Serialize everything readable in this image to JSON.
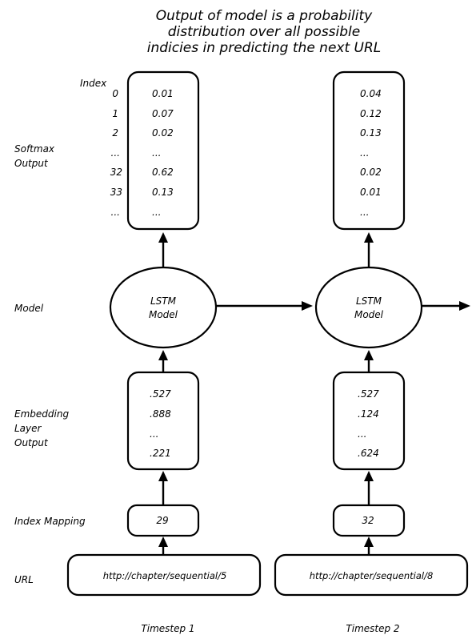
{
  "title": [
    "Output of model is a probability",
    "distribution over all possible",
    "indicies in predicting the next URL"
  ],
  "row_labels": {
    "index": "Index",
    "softmax": [
      "Softmax",
      "Output"
    ],
    "model": "Model",
    "embedding": [
      "Embedding",
      "Layer",
      "Output"
    ],
    "index_mapping": "Index Mapping",
    "url": "URL"
  },
  "index_values": [
    "0",
    "1",
    "2",
    "...",
    "32",
    "33",
    "..."
  ],
  "timesteps": [
    {
      "label": "Timestep 1",
      "softmax": [
        "0.01",
        "0.07",
        "0.02",
        "...",
        "0.62",
        "0.13",
        "..."
      ],
      "model": [
        "LSTM",
        "Model"
      ],
      "embedding": [
        ".527",
        ".888",
        "...",
        ".221"
      ],
      "index": "29",
      "url": "http://chapter/sequential/5"
    },
    {
      "label": "Timestep 2",
      "softmax": [
        "0.04",
        "0.12",
        "0.13",
        "...",
        "0.02",
        "0.01",
        "..."
      ],
      "model": [
        "LSTM",
        "Model"
      ],
      "embedding": [
        ".527",
        ".124",
        "...",
        ".624"
      ],
      "index": "32",
      "url": "http://chapter/sequential/8"
    }
  ]
}
